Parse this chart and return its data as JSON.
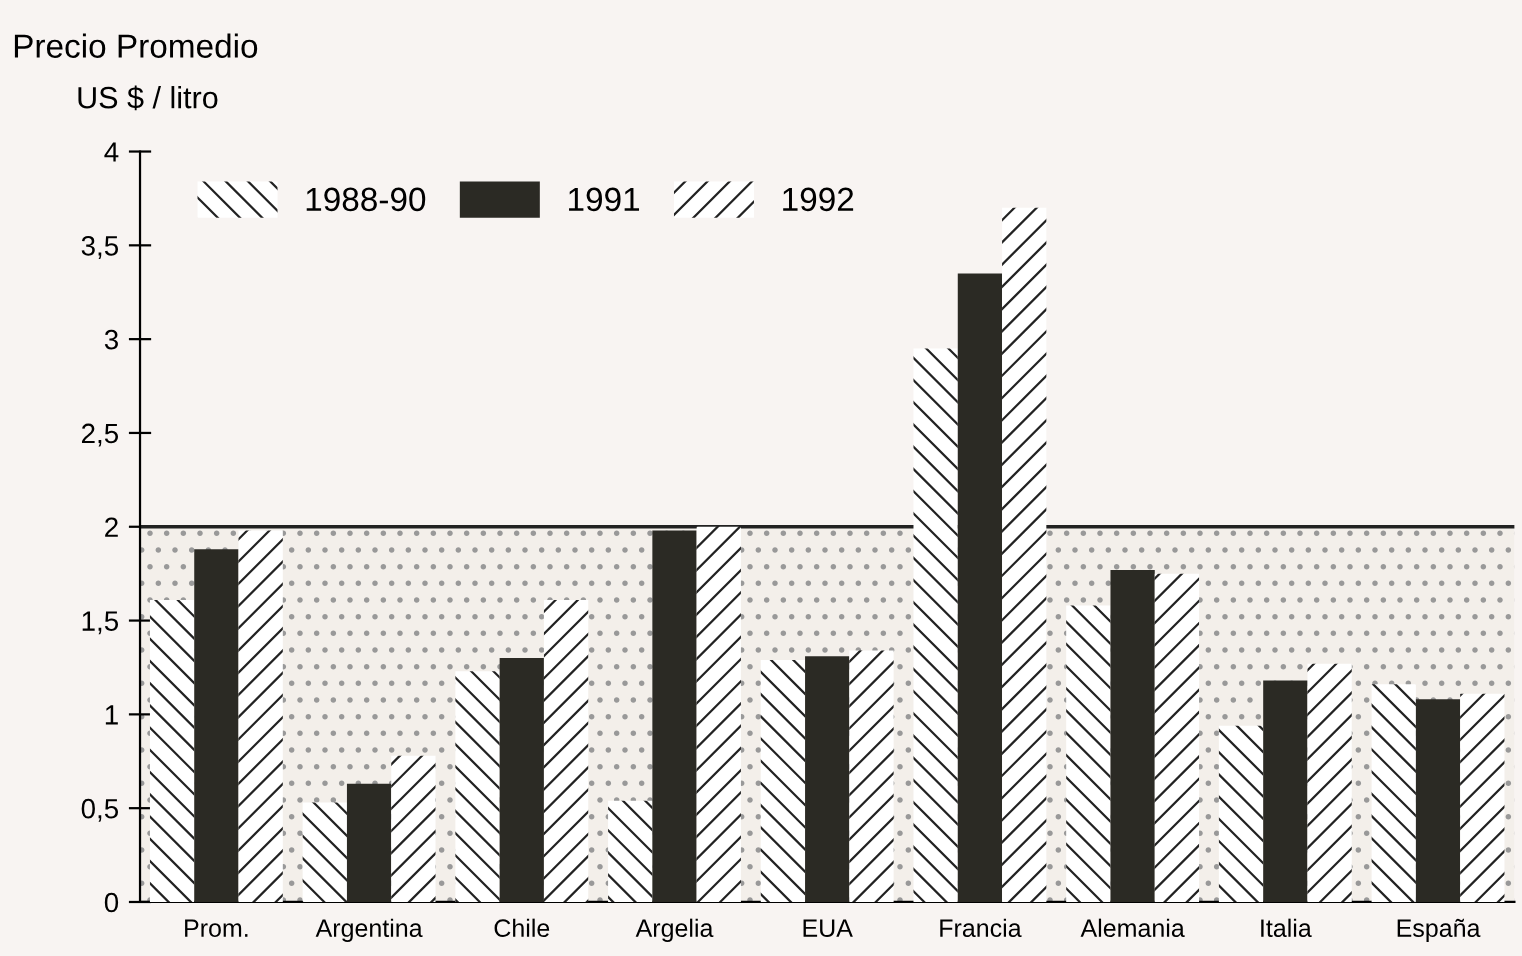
{
  "chart_data": {
    "type": "bar",
    "title": "Precio Promedio",
    "ylabel": "US $ / litro",
    "categories": [
      "Prom.",
      "Argentina",
      "Chile",
      "Argelia",
      "EUA",
      "Francia",
      "Alemania",
      "Italia",
      "España"
    ],
    "series": [
      {
        "name": "1988-90",
        "color": "#ffffff",
        "values": [
          1.61,
          0.53,
          1.23,
          0.54,
          1.29,
          2.95,
          1.58,
          0.94,
          1.16
        ]
      },
      {
        "name": "1991",
        "color": "#2b2a24",
        "values": [
          1.88,
          0.63,
          1.3,
          1.98,
          1.31,
          3.35,
          1.77,
          1.18,
          1.08
        ]
      },
      {
        "name": "1992",
        "color": "#ffffff",
        "values": [
          1.98,
          0.78,
          1.61,
          2.0,
          1.34,
          3.7,
          1.75,
          1.27,
          1.11
        ]
      }
    ],
    "ylim": [
      0,
      4
    ],
    "yticks": [
      0,
      {
        "value": 0.5,
        "label": "0,5"
      },
      1,
      {
        "value": 1.5,
        "label": "1,5"
      },
      2,
      {
        "value": 2.5,
        "label": "2,5"
      },
      3,
      {
        "value": 3.5,
        "label": "3,5"
      },
      4
    ],
    "bands": [
      {
        "axis": "y",
        "from": 0,
        "to": 2,
        "color": "#f3efea"
      }
    ],
    "legend": "top left"
  }
}
